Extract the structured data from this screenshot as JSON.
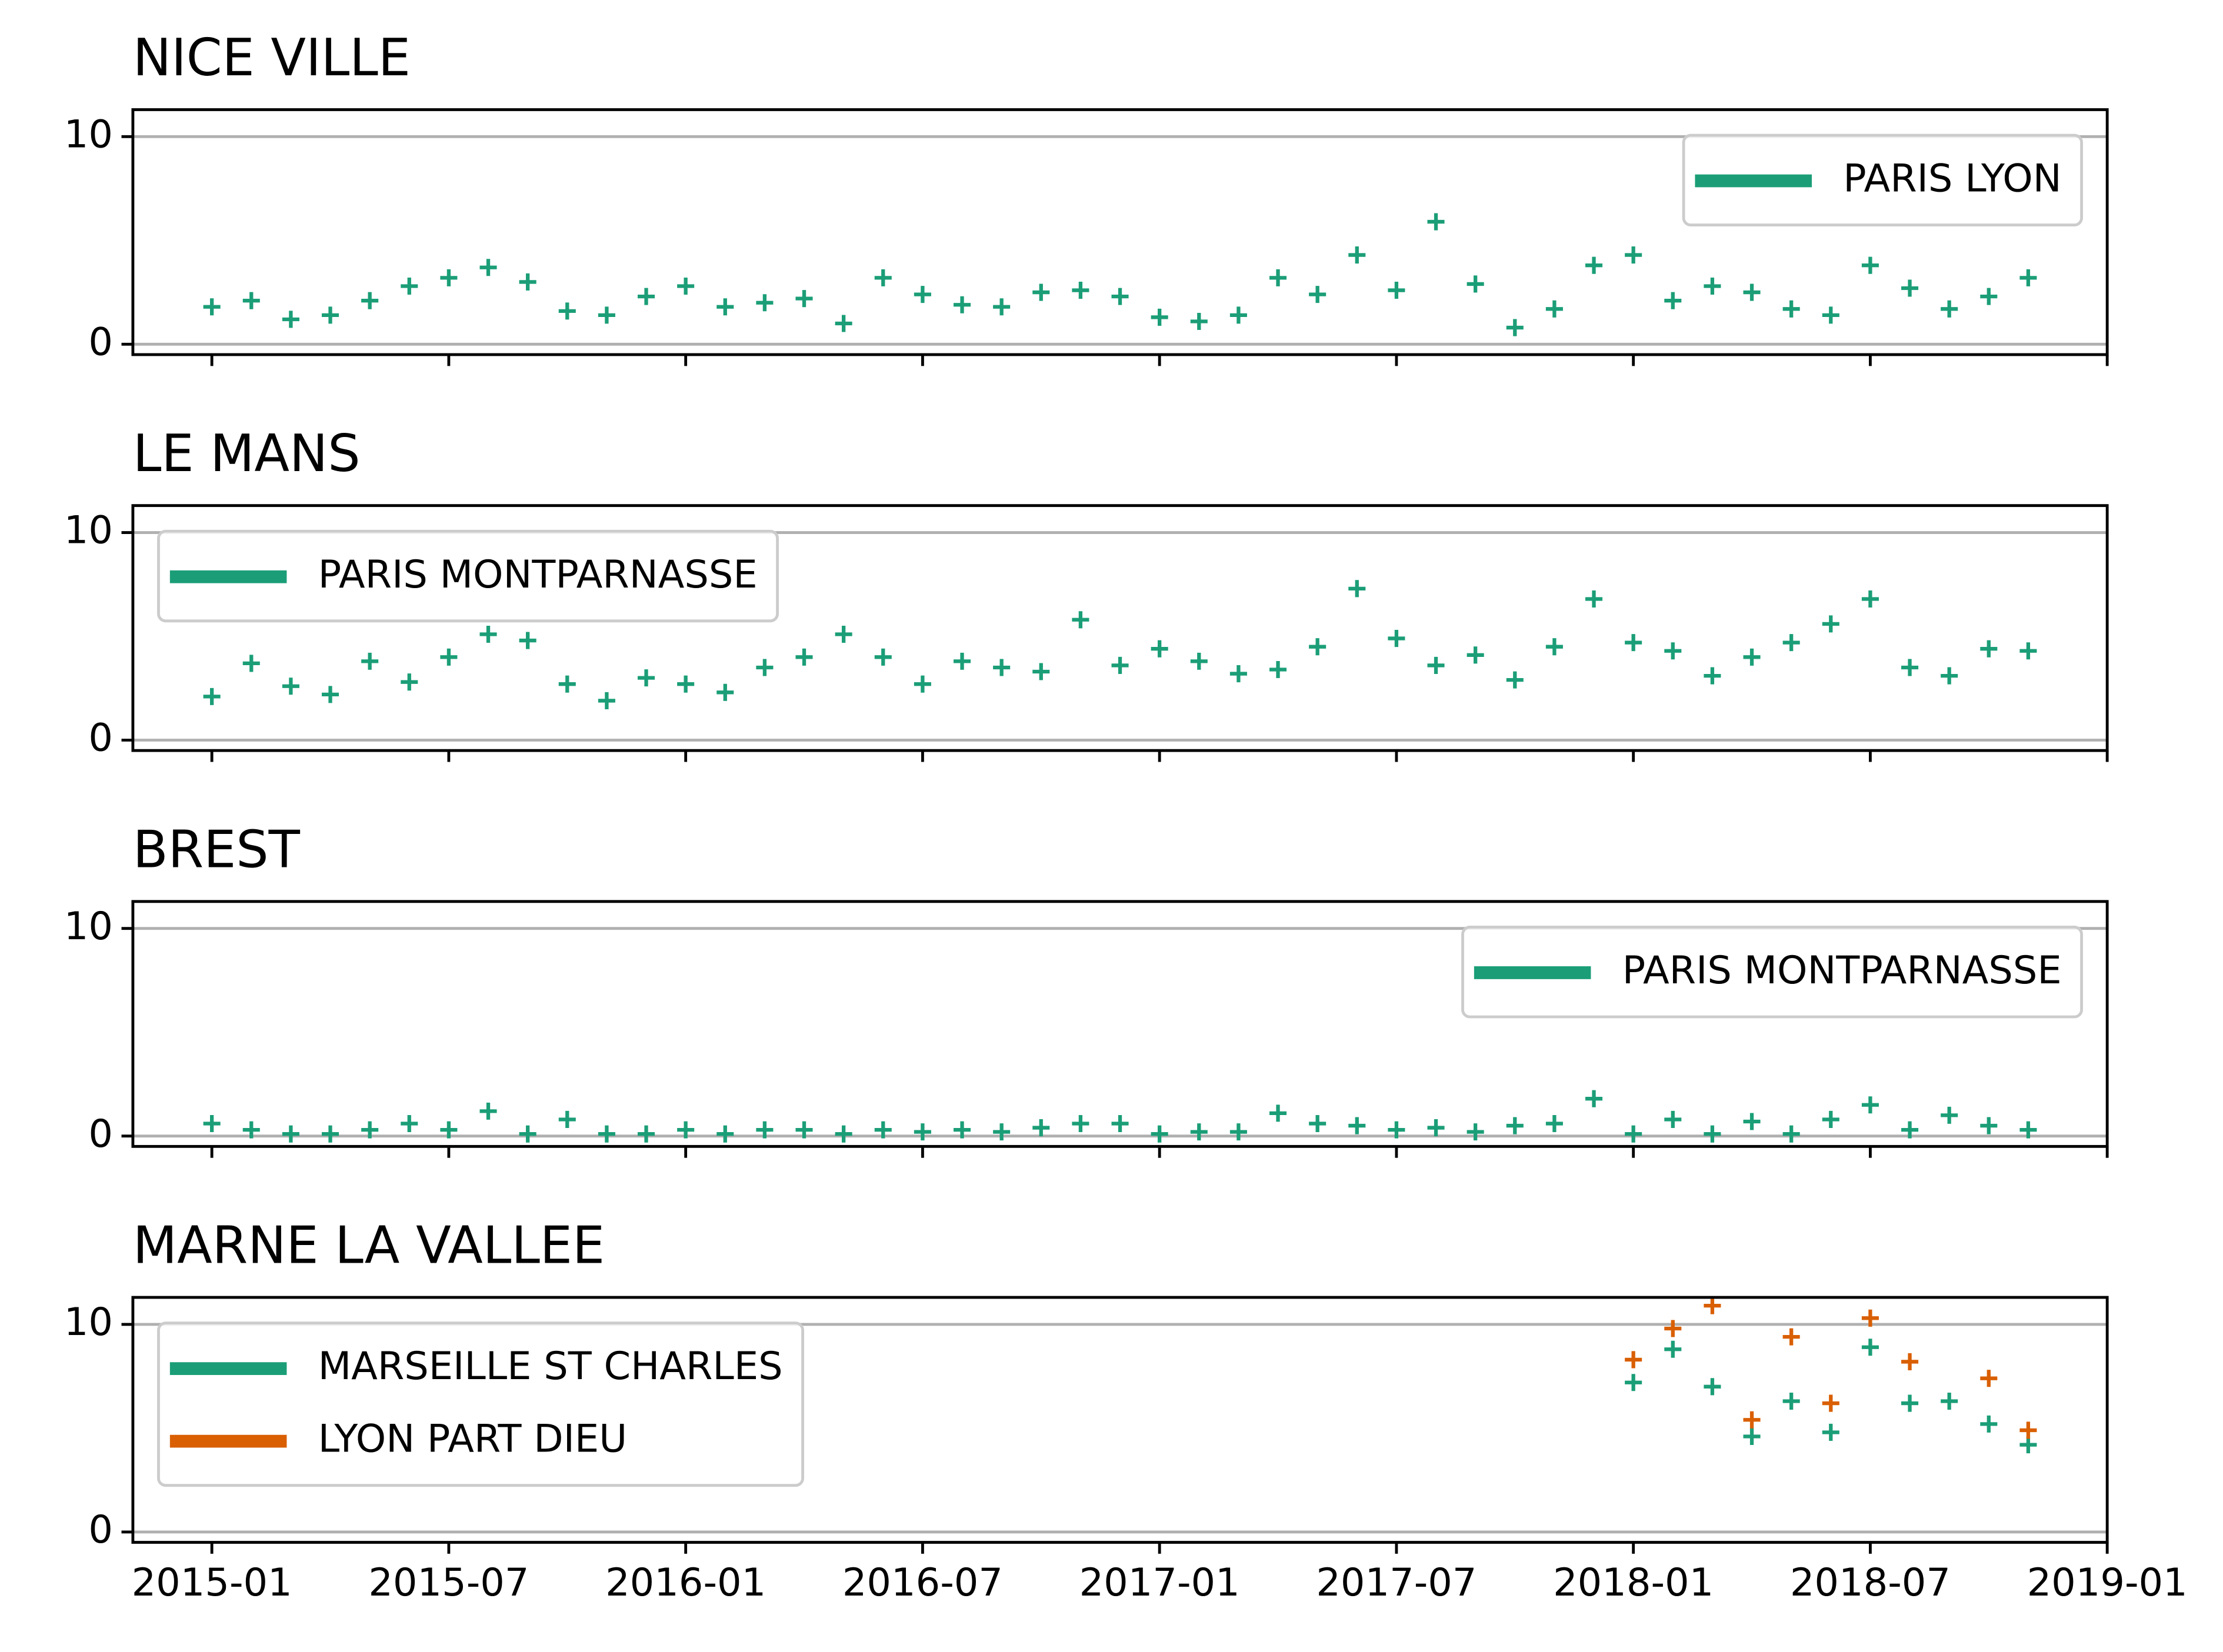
{
  "chart_data": [
    {
      "type": "scatter",
      "title": "NICE VILLE",
      "marker": "+",
      "grid": true,
      "legend": "upper right",
      "x": [
        "2015-01",
        "2015-02",
        "2015-03",
        "2015-04",
        "2015-05",
        "2015-06",
        "2015-07",
        "2015-08",
        "2015-09",
        "2015-10",
        "2015-11",
        "2015-12",
        "2016-01",
        "2016-02",
        "2016-03",
        "2016-04",
        "2016-05",
        "2016-06",
        "2016-07",
        "2016-08",
        "2016-09",
        "2016-10",
        "2016-11",
        "2016-12",
        "2017-01",
        "2017-02",
        "2017-03",
        "2017-04",
        "2017-05",
        "2017-06",
        "2017-07",
        "2017-08",
        "2017-09",
        "2017-10",
        "2017-11",
        "2017-12",
        "2018-01",
        "2018-02",
        "2018-03",
        "2018-04",
        "2018-05",
        "2018-06",
        "2018-07",
        "2018-08",
        "2018-09",
        "2018-10",
        "2018-11"
      ],
      "series": [
        {
          "name": "PARIS LYON",
          "color": "#1b9e77",
          "values": [
            1.8,
            2.1,
            1.2,
            1.4,
            2.1,
            2.8,
            3.2,
            3.7,
            3.0,
            1.6,
            1.4,
            2.3,
            2.8,
            1.8,
            2.0,
            2.2,
            1.0,
            3.2,
            2.4,
            1.9,
            1.8,
            2.5,
            2.6,
            2.3,
            1.3,
            1.1,
            1.4,
            3.2,
            2.4,
            4.3,
            2.6,
            5.9,
            2.9,
            0.8,
            1.7,
            3.8,
            4.3,
            2.1,
            2.8,
            2.5,
            1.7,
            1.4,
            3.8,
            2.7,
            1.7,
            2.3,
            3.2
          ]
        }
      ],
      "ylim": [
        -0.5,
        11.3
      ],
      "yticks": [
        0,
        10
      ]
    },
    {
      "type": "scatter",
      "title": "LE MANS",
      "marker": "+",
      "grid": true,
      "legend": "upper left",
      "x": [
        "2015-01",
        "2015-02",
        "2015-03",
        "2015-04",
        "2015-05",
        "2015-06",
        "2015-07",
        "2015-08",
        "2015-09",
        "2015-10",
        "2015-11",
        "2015-12",
        "2016-01",
        "2016-02",
        "2016-03",
        "2016-04",
        "2016-05",
        "2016-06",
        "2016-07",
        "2016-08",
        "2016-09",
        "2016-10",
        "2016-11",
        "2016-12",
        "2017-01",
        "2017-02",
        "2017-03",
        "2017-04",
        "2017-05",
        "2017-06",
        "2017-07",
        "2017-08",
        "2017-09",
        "2017-10",
        "2017-11",
        "2017-12",
        "2018-01",
        "2018-02",
        "2018-03",
        "2018-04",
        "2018-05",
        "2018-06",
        "2018-07",
        "2018-08",
        "2018-09",
        "2018-10",
        "2018-11"
      ],
      "series": [
        {
          "name": "PARIS MONTPARNASSE",
          "color": "#1b9e77",
          "values": [
            2.1,
            3.7,
            2.6,
            2.2,
            3.8,
            2.8,
            4.0,
            5.1,
            4.8,
            2.7,
            1.9,
            3.0,
            2.7,
            2.3,
            3.5,
            4.0,
            5.1,
            4.0,
            2.7,
            3.8,
            3.5,
            3.3,
            5.8,
            3.6,
            4.4,
            3.8,
            3.2,
            3.4,
            4.5,
            7.3,
            4.9,
            3.6,
            4.1,
            2.9,
            4.5,
            6.8,
            4.7,
            4.3,
            3.1,
            4.0,
            4.7,
            5.6,
            6.8,
            3.5,
            3.1,
            4.4,
            4.3
          ]
        }
      ],
      "ylim": [
        -0.5,
        11.3
      ],
      "yticks": [
        0,
        10
      ]
    },
    {
      "type": "scatter",
      "title": "BREST",
      "marker": "+",
      "grid": true,
      "legend": "upper right",
      "x": [
        "2015-01",
        "2015-02",
        "2015-03",
        "2015-04",
        "2015-05",
        "2015-06",
        "2015-07",
        "2015-08",
        "2015-09",
        "2015-10",
        "2015-11",
        "2015-12",
        "2016-01",
        "2016-02",
        "2016-03",
        "2016-04",
        "2016-05",
        "2016-06",
        "2016-07",
        "2016-08",
        "2016-09",
        "2016-10",
        "2016-11",
        "2016-12",
        "2017-01",
        "2017-02",
        "2017-03",
        "2017-04",
        "2017-05",
        "2017-06",
        "2017-07",
        "2017-08",
        "2017-09",
        "2017-10",
        "2017-11",
        "2017-12",
        "2018-01",
        "2018-02",
        "2018-03",
        "2018-04",
        "2018-05",
        "2018-06",
        "2018-07",
        "2018-08",
        "2018-09",
        "2018-10",
        "2018-11"
      ],
      "series": [
        {
          "name": "PARIS MONTPARNASSE",
          "color": "#1b9e77",
          "values": [
            0.6,
            0.3,
            0.1,
            0.1,
            0.3,
            0.6,
            0.3,
            1.2,
            0.1,
            0.8,
            0.1,
            0.1,
            0.3,
            0.1,
            0.3,
            0.3,
            0.1,
            0.3,
            0.2,
            0.3,
            0.2,
            0.4,
            0.6,
            0.6,
            0.1,
            0.2,
            0.2,
            1.1,
            0.6,
            0.5,
            0.3,
            0.4,
            0.2,
            0.5,
            0.6,
            1.8,
            0.1,
            0.8,
            0.1,
            0.7,
            0.1,
            0.8,
            1.5,
            0.3,
            1.0,
            0.5,
            0.3
          ]
        }
      ],
      "ylim": [
        -0.5,
        11.3
      ],
      "yticks": [
        0,
        10
      ]
    },
    {
      "type": "scatter",
      "title": "MARNE LA VALLEE",
      "marker": "+",
      "grid": true,
      "legend": "upper left",
      "x": [
        "2018-01",
        "2018-02",
        "2018-03",
        "2018-04",
        "2018-05",
        "2018-06",
        "2018-07",
        "2018-08",
        "2018-09",
        "2018-10",
        "2018-11"
      ],
      "series": [
        {
          "name": "MARSEILLE ST CHARLES",
          "color": "#1b9e77",
          "values": [
            7.2,
            8.8,
            7.0,
            4.6,
            6.3,
            4.8,
            8.9,
            6.2,
            6.3,
            5.2,
            4.2
          ]
        },
        {
          "name": "LYON PART DIEU",
          "color": "#d95f02",
          "values": [
            8.3,
            9.8,
            10.9,
            5.4,
            9.4,
            6.2,
            10.3,
            8.2,
            null,
            7.4,
            4.9
          ]
        }
      ],
      "ylim": [
        -0.5,
        11.3
      ],
      "yticks": [
        0,
        10
      ],
      "xlim": [
        "2014-11",
        "2019-01"
      ],
      "xticks": [
        "2015-01",
        "2015-07",
        "2016-01",
        "2016-07",
        "2017-01",
        "2017-07",
        "2018-01",
        "2018-07",
        "2019-01"
      ]
    }
  ]
}
